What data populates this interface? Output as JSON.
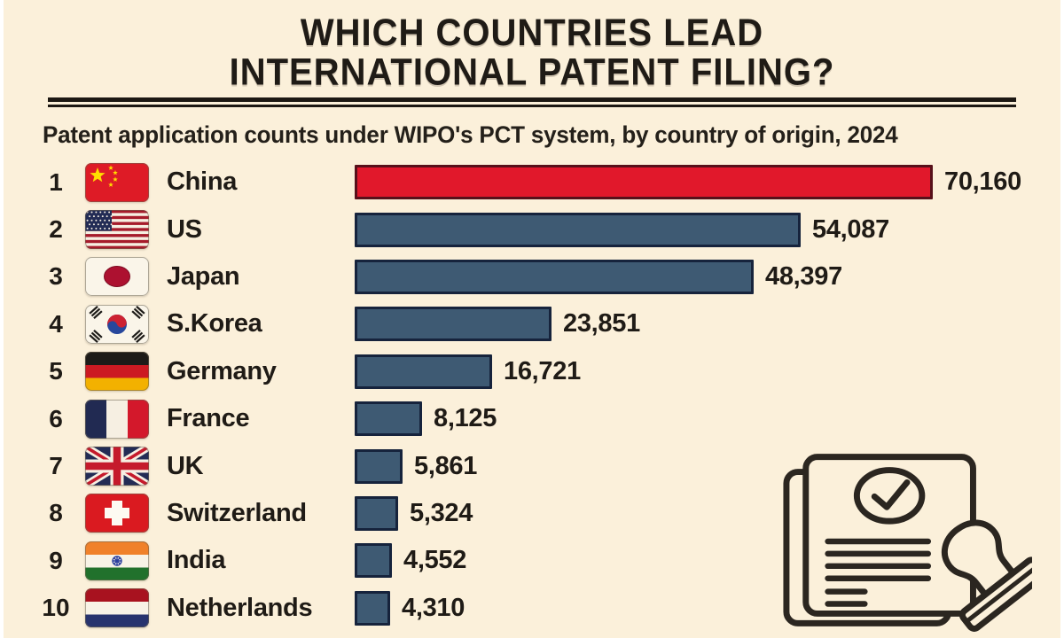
{
  "header": {
    "title_line1": "WHICH COUNTRIES LEAD",
    "title_line2": "INTERNATIONAL PATENT FILING?",
    "subtitle": "Patent application counts under WIPO's PCT system, by country of origin, 2024"
  },
  "colors": {
    "background": "#fbf0da",
    "text": "#1f1b16",
    "divider": "#1c1813",
    "bar_fill": "#3e5a73",
    "bar_border": "#16233c",
    "leader_fill": "#e1182b",
    "leader_border": "#57101a"
  },
  "chart_data": {
    "type": "bar",
    "orientation": "horizontal",
    "title": "WHICH COUNTRIES LEAD INTERNATIONAL PATENT FILING?",
    "subtitle": "Patent application counts under WIPO's PCT system, by country of origin, 2024",
    "xlabel": "",
    "ylabel": "",
    "max_value": 70160,
    "legend": "none",
    "grid": false,
    "rows": [
      {
        "rank": "1",
        "country": "China",
        "flag": "cn",
        "value": 70160,
        "label": "70,160",
        "highlight": true
      },
      {
        "rank": "2",
        "country": "US",
        "flag": "us",
        "value": 54087,
        "label": "54,087",
        "highlight": false
      },
      {
        "rank": "3",
        "country": "Japan",
        "flag": "jp",
        "value": 48397,
        "label": "48,397",
        "highlight": false
      },
      {
        "rank": "4",
        "country": "S.Korea",
        "flag": "kr",
        "value": 23851,
        "label": "23,851",
        "highlight": false
      },
      {
        "rank": "5",
        "country": "Germany",
        "flag": "de",
        "value": 16721,
        "label": "16,721",
        "highlight": false
      },
      {
        "rank": "6",
        "country": "France",
        "flag": "fr",
        "value": 8125,
        "label": "8,125",
        "highlight": false
      },
      {
        "rank": "7",
        "country": "UK",
        "flag": "gb",
        "value": 5861,
        "label": "5,861",
        "highlight": false
      },
      {
        "rank": "8",
        "country": "Switzerland",
        "flag": "ch",
        "value": 5324,
        "label": "5,324",
        "highlight": false
      },
      {
        "rank": "9",
        "country": "India",
        "flag": "in",
        "value": 4552,
        "label": "4,552",
        "highlight": false
      },
      {
        "rank": "10",
        "country": "Netherlands",
        "flag": "nl",
        "value": 4310,
        "label": "4,310",
        "highlight": false
      }
    ]
  },
  "decor": {
    "icon": "document-approved-stamp-icon"
  }
}
